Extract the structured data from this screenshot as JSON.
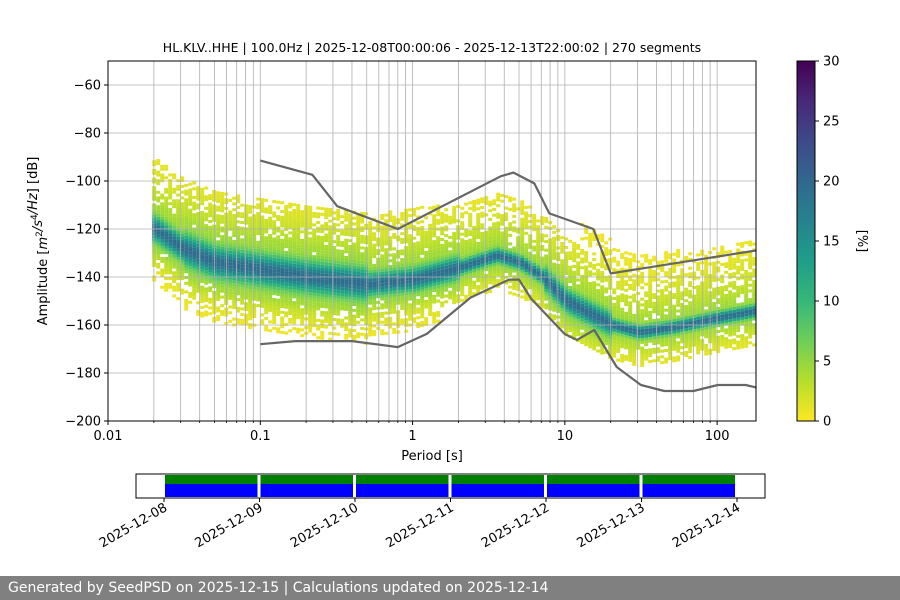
{
  "chart_data": {
    "type": "heatmap",
    "title": "HL.KLV..HHE | 100.0Hz | 2025-12-08T00:00:06 - 2025-12-13T22:00:02 | 270 segments",
    "xlabel": "Period [s]",
    "ylabel_parts": [
      "Amplitude [",
      "m",
      "2",
      "/",
      "s",
      "4",
      "/",
      "Hz",
      "] [dB]"
    ],
    "xscale": "log",
    "xlim": [
      0.01,
      180
    ],
    "ylim": [
      -200,
      -50
    ],
    "x_ticks": [
      0.01,
      0.1,
      1,
      10,
      100
    ],
    "x_tick_labels": [
      "0.01",
      "0.1",
      "1",
      "10",
      "100"
    ],
    "y_ticks": [
      -200,
      -180,
      -160,
      -140,
      -120,
      -100,
      -80,
      -60
    ],
    "y_tick_labels": [
      "−200",
      "−180",
      "−160",
      "−140",
      "−120",
      "−100",
      "−80",
      "−60"
    ],
    "grid": true,
    "colorbar": {
      "label": "[%]",
      "range": [
        0,
        30
      ],
      "ticks": [
        0,
        5,
        10,
        15,
        20,
        25,
        30
      ],
      "tick_labels": [
        "0",
        "5",
        "10",
        "15",
        "20",
        "25",
        "30"
      ],
      "colormap": [
        "#fde725",
        "#b5de2b",
        "#6ece58",
        "#35b779",
        "#1f9e89",
        "#26828e",
        "#31688e",
        "#3e4989",
        "#482878",
        "#440154"
      ]
    },
    "psd_mode": {
      "period": [
        0.02,
        0.03,
        0.05,
        0.1,
        0.2,
        0.5,
        1,
        2,
        3.5,
        5,
        7,
        10,
        20,
        30,
        50,
        100,
        180
      ],
      "amplitude": [
        -120,
        -128,
        -134,
        -137,
        -140,
        -143,
        -141,
        -136,
        -131,
        -134,
        -140,
        -150,
        -160,
        -163,
        -161,
        -157,
        -154
      ]
    },
    "high_noise_model": {
      "period": [
        0.1,
        0.22,
        0.32,
        0.8,
        3.8,
        4.6,
        6.3,
        7.9,
        15.4,
        20,
        354.8
      ],
      "amplitude": [
        -91.5,
        -97.4,
        -110.5,
        -120,
        -98,
        -96.5,
        -101,
        -113.5,
        -120,
        -138.5,
        -126
      ]
    },
    "low_noise_model": {
      "period": [
        0.1,
        0.17,
        0.4,
        0.8,
        1.24,
        2.4,
        4.3,
        5,
        6,
        10,
        12,
        15.6,
        21.9,
        31.6,
        45,
        70,
        101,
        154,
        180
      ],
      "amplitude": [
        -168,
        -166.7,
        -166.7,
        -169.2,
        -163.7,
        -148.6,
        -141.1,
        -141.1,
        -149,
        -163.8,
        -166.2,
        -162.1,
        -177.5,
        -185,
        -187.5,
        -187.5,
        -185,
        -185,
        -186
      ]
    },
    "line_color": "#666666"
  },
  "timeline": {
    "tick_labels": [
      "2025-12-08",
      "2025-12-09",
      "2025-12-10",
      "2025-12-11",
      "2025-12-12",
      "2025-12-13",
      "2025-12-14"
    ],
    "data_range": [
      "2025-12-08",
      "2025-12-14"
    ],
    "days_with_data": [
      "2025-12-08",
      "2025-12-09",
      "2025-12-10",
      "2025-12-11",
      "2025-12-12",
      "2025-12-13"
    ],
    "colors": {
      "top": "#008000",
      "bottom": "#0000ff"
    }
  },
  "footer": {
    "text": "Generated by SeedPSD on 2025-12-15 | Calculations updated on 2025-12-14"
  }
}
